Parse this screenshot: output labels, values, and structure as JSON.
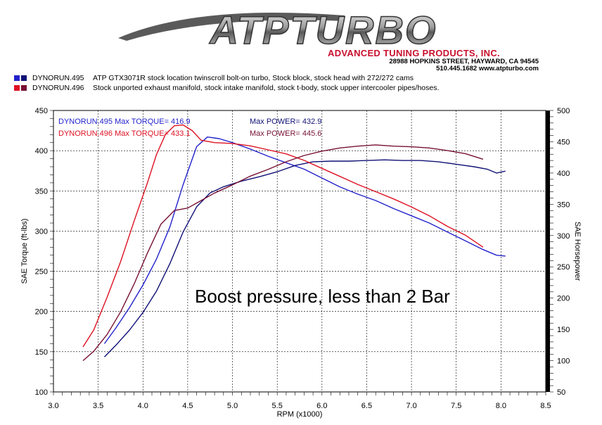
{
  "header": {
    "logo_text": "ATPTURBO",
    "tagline": "ADVANCED TUNING PRODUCTS, INC.",
    "address": "28988 HOPKINS STREET, HAYWARD, CA 94545",
    "phone_web": "510.445.1682 www.atpturbo.com"
  },
  "legend": [
    {
      "id": "DYNORUN.495",
      "desc": "ATP GTX3071R stock location twinscroll bolt-on turbo,  Stock block, stock head with 272/272 cams",
      "color_a": "#2222cc",
      "color_b": "#111177"
    },
    {
      "id": "DYNORUN.496",
      "desc": "Stock unported exhaust manifold, stock intake manifold, stock t-body, stock upper intercooler pipes/hoses.",
      "color_a": "#dd1122",
      "color_b": "#771133"
    }
  ],
  "chart_data": {
    "type": "line",
    "xlabel": "RPM (x1000)",
    "ylabel": "SAE Torque (ft-lbs)",
    "y2label": "SAE Horsepower",
    "xlim": [
      3.0,
      8.5
    ],
    "ylim": [
      100,
      450
    ],
    "y2lim": [
      50,
      500
    ],
    "x_ticks": [
      "3.0",
      "3.5",
      "4.0",
      "4.5",
      "5.0",
      "5.5",
      "6.0",
      "6.5",
      "7.0",
      "7.5",
      "8.0",
      "8.5"
    ],
    "y_ticks": [
      "100",
      "150",
      "200",
      "250",
      "300",
      "350",
      "400",
      "450"
    ],
    "y2_ticks": [
      "50",
      "100",
      "150",
      "200",
      "250",
      "300",
      "350",
      "400",
      "450",
      "500"
    ],
    "grid": true,
    "annotations": [
      {
        "text": "DYNORUN.495  Max TORQUE= 416.9",
        "color": "#2222cc"
      },
      {
        "text": "DYNORUN.496  Max TORQUE= 433.1",
        "color": "#dd1122"
      },
      {
        "text": "Max POWER= 432.9",
        "color": "#111177"
      },
      {
        "text": "Max POWER= 445.6",
        "color": "#771133"
      }
    ],
    "note": "Boost pressure, less than 2 Bar",
    "series": [
      {
        "name": "DYNORUN.495",
        "measure": "torque",
        "axis": "left",
        "color": "#2222cc",
        "x": [
          3.57,
          3.7,
          3.85,
          4.0,
          4.15,
          4.3,
          4.45,
          4.6,
          4.72,
          4.85,
          5.0,
          5.2,
          5.4,
          5.6,
          5.8,
          6.0,
          6.2,
          6.4,
          6.6,
          6.8,
          7.0,
          7.2,
          7.4,
          7.6,
          7.8,
          7.95,
          8.05
        ],
        "y": [
          160,
          180,
          205,
          233,
          265,
          305,
          358,
          405,
          417,
          415,
          410,
          402,
          393,
          385,
          377,
          366,
          355,
          346,
          338,
          328,
          319,
          310,
          299,
          288,
          277,
          270,
          269
        ]
      },
      {
        "name": "DYNORUN.495",
        "measure": "power",
        "axis": "right",
        "color": "#111177",
        "x": [
          3.57,
          3.7,
          3.85,
          4.0,
          4.15,
          4.3,
          4.45,
          4.6,
          4.75,
          4.9,
          5.1,
          5.3,
          5.5,
          5.7,
          5.9,
          6.1,
          6.3,
          6.5,
          6.7,
          6.9,
          7.1,
          7.3,
          7.5,
          7.7,
          7.85,
          7.95,
          8.05
        ],
        "y": [
          106,
          125,
          149,
          177,
          211,
          255,
          306,
          346,
          368,
          378,
          387,
          394,
          402,
          412,
          418,
          419,
          419,
          420,
          421,
          420,
          420,
          418,
          414,
          410,
          406,
          400,
          403
        ]
      },
      {
        "name": "DYNORUN.496",
        "measure": "torque",
        "axis": "left",
        "color": "#dd1122",
        "x": [
          3.33,
          3.45,
          3.6,
          3.75,
          3.9,
          4.05,
          4.15,
          4.25,
          4.35,
          4.45,
          4.55,
          4.65,
          4.8,
          5.0,
          5.2,
          5.4,
          5.6,
          5.8,
          6.0,
          6.2,
          6.4,
          6.6,
          6.8,
          7.0,
          7.2,
          7.4,
          7.6,
          7.8
        ],
        "y": [
          156,
          177,
          218,
          262,
          312,
          360,
          395,
          420,
          431,
          432,
          425,
          413,
          410,
          409,
          406,
          401,
          396,
          388,
          378,
          368,
          358,
          349,
          340,
          330,
          319,
          306,
          295,
          280
        ]
      },
      {
        "name": "DYNORUN.496",
        "measure": "power",
        "axis": "right",
        "color": "#771133",
        "x": [
          3.33,
          3.45,
          3.6,
          3.75,
          3.9,
          4.05,
          4.2,
          4.35,
          4.5,
          4.65,
          4.8,
          5.0,
          5.2,
          5.4,
          5.6,
          5.8,
          6.0,
          6.2,
          6.4,
          6.6,
          6.8,
          7.0,
          7.2,
          7.4,
          7.6,
          7.8
        ],
        "y": [
          100,
          115,
          142,
          178,
          222,
          272,
          318,
          340,
          344,
          356,
          368,
          381,
          395,
          406,
          418,
          428,
          435,
          440,
          443,
          445,
          443,
          442,
          440,
          436,
          431,
          422
        ]
      }
    ]
  }
}
